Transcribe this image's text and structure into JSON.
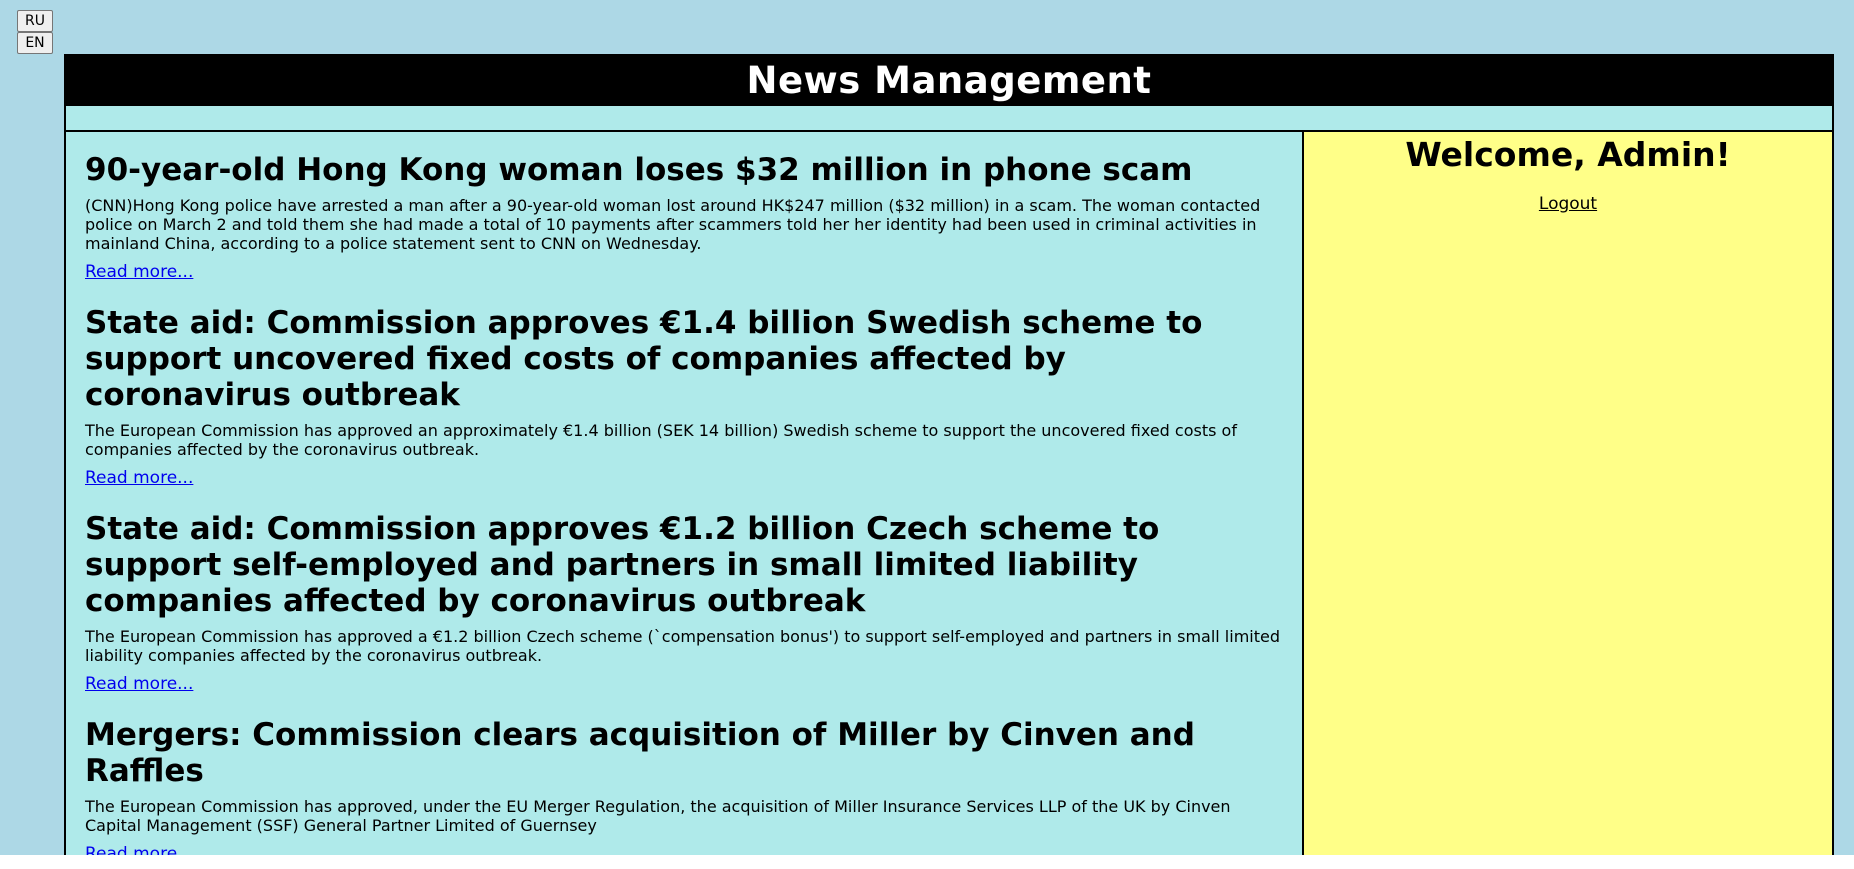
{
  "lang_switch": {
    "ru_label": "RU",
    "en_label": "EN"
  },
  "header": {
    "title": "News Management"
  },
  "sidebar": {
    "welcome": "Welcome, Admin!",
    "logout_label": "Logout"
  },
  "articles": [
    {
      "title": "90-year-old Hong Kong woman loses $32 million in phone scam",
      "summary": "(CNN)Hong Kong police have arrested a man after a 90-year-old woman lost around HK$247 million ($32 million) in a scam. The woman contacted police on March 2 and told them she had made a total of 10 payments after scammers told her her identity had been used in criminal activities in mainland China, according to a police statement sent to CNN on Wednesday.",
      "read_more": "Read more..."
    },
    {
      "title": "State aid: Commission approves €1.4 billion Swedish scheme to support uncovered fixed costs of companies affected by coronavirus outbreak",
      "summary": "The European Commission has approved an approximately €1.4 billion (SEK 14 billion) Swedish scheme to support the uncovered fixed costs of companies affected by the coronavirus outbreak.",
      "read_more": "Read more..."
    },
    {
      "title": "State aid: Commission approves €1.2 billion Czech scheme to support self-employed and partners in small limited liability companies affected by coronavirus outbreak",
      "summary": "The European Commission has approved a €1.2 billion Czech scheme (`compensation bonus') to support self-employed and partners in small limited liability companies affected by the coronavirus outbreak.",
      "read_more": "Read more..."
    },
    {
      "title": "Mergers: Commission clears acquisition of Miller by Cinven and Raffles",
      "summary": "The European Commission has approved, under the EU Merger Regulation, the acquisition of Miller Insurance Services LLP of the UK by Cinven Capital Management (SSF) General Partner Limited of Guernsey",
      "read_more": "Read more..."
    }
  ]
}
